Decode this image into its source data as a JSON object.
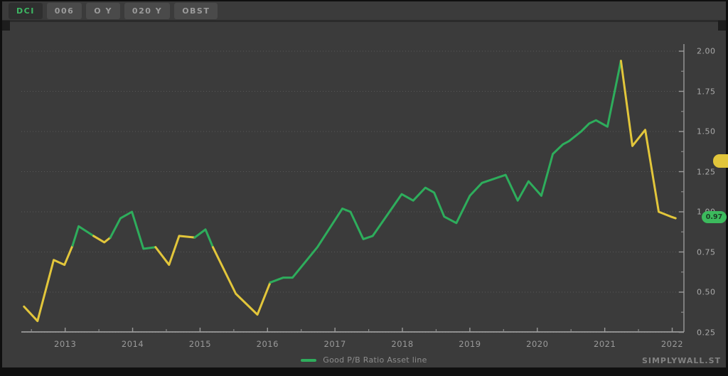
{
  "toolbar": {
    "buttons": [
      {
        "label": "DCI",
        "active": true
      },
      {
        "label": "006",
        "active": false
      },
      {
        "label": "O Y",
        "active": false
      },
      {
        "label": "020 Y",
        "active": false
      },
      {
        "label": "OBST",
        "active": false
      }
    ]
  },
  "watermark": "SIMPLYWALL.ST",
  "chart_data": {
    "type": "line",
    "title": "",
    "xlabel": "",
    "ylabel": "",
    "grid": "horizontal-dotted",
    "legend_position": "bottom-center",
    "legend": {
      "label": "Good P/B Ratio Asset line"
    },
    "colors": {
      "good": "#2ead5c",
      "caution": "#e2c63b",
      "grid": "#585858",
      "axis": "#a0a0a0"
    },
    "xlim": [
      2012.35,
      2022.1
    ],
    "ylim": [
      0.25,
      2.0
    ],
    "x_ticks": [
      2013,
      2014,
      2015,
      2016,
      2017,
      2018,
      2019,
      2020,
      2021,
      2022
    ],
    "x_tick_labels": [
      "2013",
      "2014",
      "2015",
      "2016",
      "2017",
      "2018",
      "2019",
      "2020",
      "2021",
      "2022"
    ],
    "y_ticks": [
      2.0,
      1.75,
      1.5,
      1.25,
      1.0,
      0.75,
      0.5,
      0.25
    ],
    "y_tick_labels": [
      "2.00",
      "1.75",
      "1.50",
      "1.25",
      "1.00",
      "0.75",
      "0.50",
      "0.25"
    ],
    "badges": {
      "current": {
        "label": "0.97",
        "value": 0.97,
        "color": "green"
      },
      "secondary": {
        "label": "",
        "value": 1.32,
        "color": "yellow"
      }
    },
    "series": [
      {
        "name": "Good P/B Ratio Asset line",
        "note": "each point is [year, value, colorOfSegmentStartingHere] g=good(green) y=caution(yellow)",
        "points": [
          [
            2012.39,
            0.41,
            "y"
          ],
          [
            2012.59,
            0.32,
            "y"
          ],
          [
            2012.83,
            0.7,
            "y"
          ],
          [
            2012.99,
            0.67,
            "y"
          ],
          [
            2013.11,
            0.79,
            "g"
          ],
          [
            2013.2,
            0.91,
            "g"
          ],
          [
            2013.42,
            0.85,
            "y"
          ],
          [
            2013.58,
            0.81,
            "y"
          ],
          [
            2013.67,
            0.84,
            "g"
          ],
          [
            2013.82,
            0.96,
            "g"
          ],
          [
            2013.99,
            1.0,
            "g"
          ],
          [
            2014.16,
            0.77,
            "g"
          ],
          [
            2014.34,
            0.78,
            "y"
          ],
          [
            2014.54,
            0.67,
            "y"
          ],
          [
            2014.69,
            0.85,
            "y"
          ],
          [
            2014.92,
            0.84,
            "g"
          ],
          [
            2015.08,
            0.89,
            "g"
          ],
          [
            2015.19,
            0.78,
            "y"
          ],
          [
            2015.53,
            0.49,
            "y"
          ],
          [
            2015.85,
            0.36,
            "y"
          ],
          [
            2016.04,
            0.56,
            "g"
          ],
          [
            2016.23,
            0.59,
            "g"
          ],
          [
            2016.37,
            0.59,
            "g"
          ],
          [
            2016.74,
            0.78,
            "g"
          ],
          [
            2017.11,
            1.02,
            "g"
          ],
          [
            2017.23,
            1.0,
            "g"
          ],
          [
            2017.42,
            0.83,
            "g"
          ],
          [
            2017.56,
            0.85,
            "g"
          ],
          [
            2017.99,
            1.11,
            "g"
          ],
          [
            2018.16,
            1.07,
            "g"
          ],
          [
            2018.34,
            1.15,
            "g"
          ],
          [
            2018.47,
            1.12,
            "g"
          ],
          [
            2018.62,
            0.97,
            "g"
          ],
          [
            2018.8,
            0.93,
            "g"
          ],
          [
            2019.0,
            1.1,
            "g"
          ],
          [
            2019.18,
            1.18,
            "g"
          ],
          [
            2019.53,
            1.23,
            "g"
          ],
          [
            2019.71,
            1.07,
            "g"
          ],
          [
            2019.87,
            1.19,
            "g"
          ],
          [
            2020.06,
            1.1,
            "g"
          ],
          [
            2020.23,
            1.36,
            "g"
          ],
          [
            2020.38,
            1.42,
            "g"
          ],
          [
            2020.47,
            1.44,
            "g"
          ],
          [
            2020.65,
            1.5,
            "g"
          ],
          [
            2020.77,
            1.55,
            "g"
          ],
          [
            2020.87,
            1.57,
            "g"
          ],
          [
            2021.04,
            1.53,
            "g"
          ],
          [
            2021.24,
            1.94,
            "y"
          ],
          [
            2021.41,
            1.41,
            "y"
          ],
          [
            2021.6,
            1.51,
            "y"
          ],
          [
            2021.8,
            1.0,
            "y"
          ],
          [
            2021.98,
            0.97,
            "y"
          ],
          [
            2022.05,
            0.96,
            "y"
          ]
        ]
      }
    ]
  }
}
